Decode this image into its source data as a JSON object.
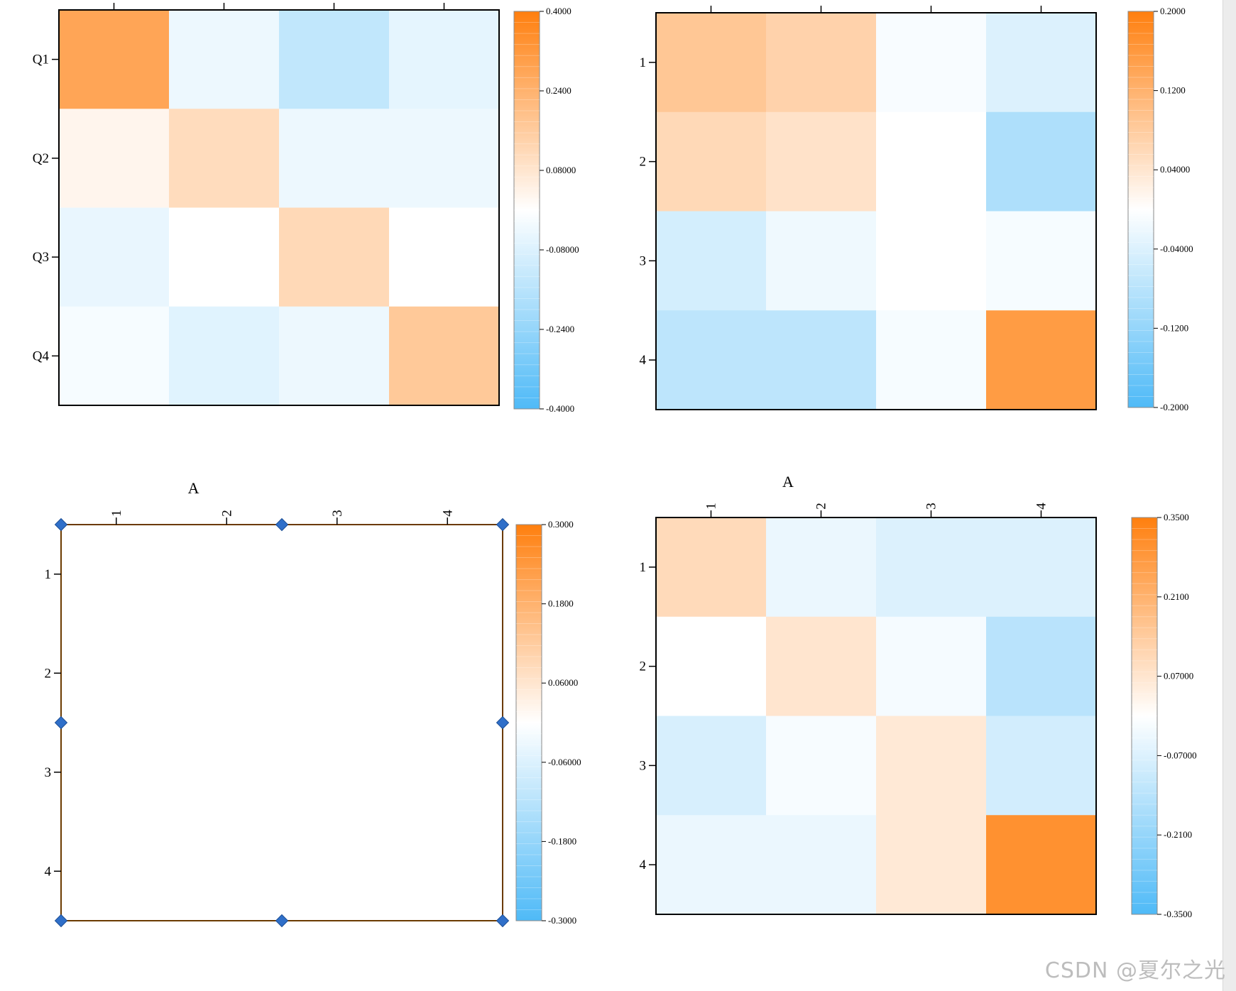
{
  "watermark": "CSDN @夏尔之光",
  "colors": {
    "max": "#ff7f0e",
    "mid": "#ffffff",
    "min": "#4fbaf7",
    "frame": "#000000",
    "selection_frame": "#6b3a00",
    "selection_handle": "#2f6fc9"
  },
  "chart_data": [
    {
      "type": "heatmap",
      "title": "",
      "rows": [
        "Q1",
        "Q2",
        "Q3",
        "Q4"
      ],
      "columns": [
        "",
        "",
        "",
        ""
      ],
      "column_labels_visible": false,
      "values": [
        [
          0.28,
          -0.04,
          -0.14,
          -0.06
        ],
        [
          0.03,
          0.11,
          -0.04,
          -0.04
        ],
        [
          -0.05,
          0.0,
          0.12,
          0.0
        ],
        [
          -0.02,
          -0.07,
          -0.04,
          0.17
        ]
      ],
      "zlim": [
        -0.4,
        0.4
      ],
      "colorbar": {
        "ticks": [
          "0.4000",
          "0.2400",
          "0.08000",
          "-0.08000",
          "-0.2400",
          "-0.4000"
        ]
      }
    },
    {
      "type": "heatmap",
      "title": "",
      "rows": [
        "1",
        "2",
        "3",
        "4"
      ],
      "columns": [
        "",
        "",
        "",
        ""
      ],
      "column_labels_visible": false,
      "values": [
        [
          0.088,
          0.07,
          -0.008,
          -0.04
        ],
        [
          0.06,
          0.045,
          0.0,
          -0.092
        ],
        [
          -0.05,
          -0.018,
          0.0,
          -0.01
        ],
        [
          -0.075,
          -0.075,
          -0.01,
          0.155
        ]
      ],
      "zlim": [
        -0.2,
        0.2
      ],
      "colorbar": {
        "ticks": [
          "0.2000",
          "0.1200",
          "0.04000",
          "-0.04000",
          "-0.1200",
          "-0.2000"
        ]
      }
    },
    {
      "type": "heatmap",
      "title": "A",
      "rows": [
        "1",
        "2",
        "3",
        "4"
      ],
      "columns": [
        "1",
        "2",
        "3",
        "4"
      ],
      "column_labels_visible": true,
      "selected": true,
      "values": [
        [
          0,
          0,
          0,
          0
        ],
        [
          0,
          0,
          0,
          0
        ],
        [
          0,
          0,
          0,
          0
        ],
        [
          0,
          0,
          0,
          0
        ]
      ],
      "zlim": [
        -0.3,
        0.3
      ],
      "colorbar": {
        "ticks": [
          "0.3000",
          "0.1800",
          "0.06000",
          "-0.06000",
          "-0.1800",
          "-0.3000"
        ]
      }
    },
    {
      "type": "heatmap",
      "title": "A",
      "rows": [
        "1",
        "2",
        "3",
        "4"
      ],
      "columns": [
        "1",
        "2",
        "3",
        "4"
      ],
      "column_labels_visible": true,
      "values": [
        [
          0.1,
          -0.04,
          -0.07,
          -0.07
        ],
        [
          0.0,
          0.07,
          -0.02,
          -0.14
        ],
        [
          -0.08,
          -0.015,
          0.06,
          -0.09
        ],
        [
          -0.04,
          -0.04,
          0.06,
          0.3
        ]
      ],
      "zlim": [
        -0.35,
        0.35
      ],
      "colorbar": {
        "ticks": [
          "0.3500",
          "0.2100",
          "0.07000",
          "-0.07000",
          "-0.2100",
          "-0.3500"
        ]
      }
    }
  ]
}
